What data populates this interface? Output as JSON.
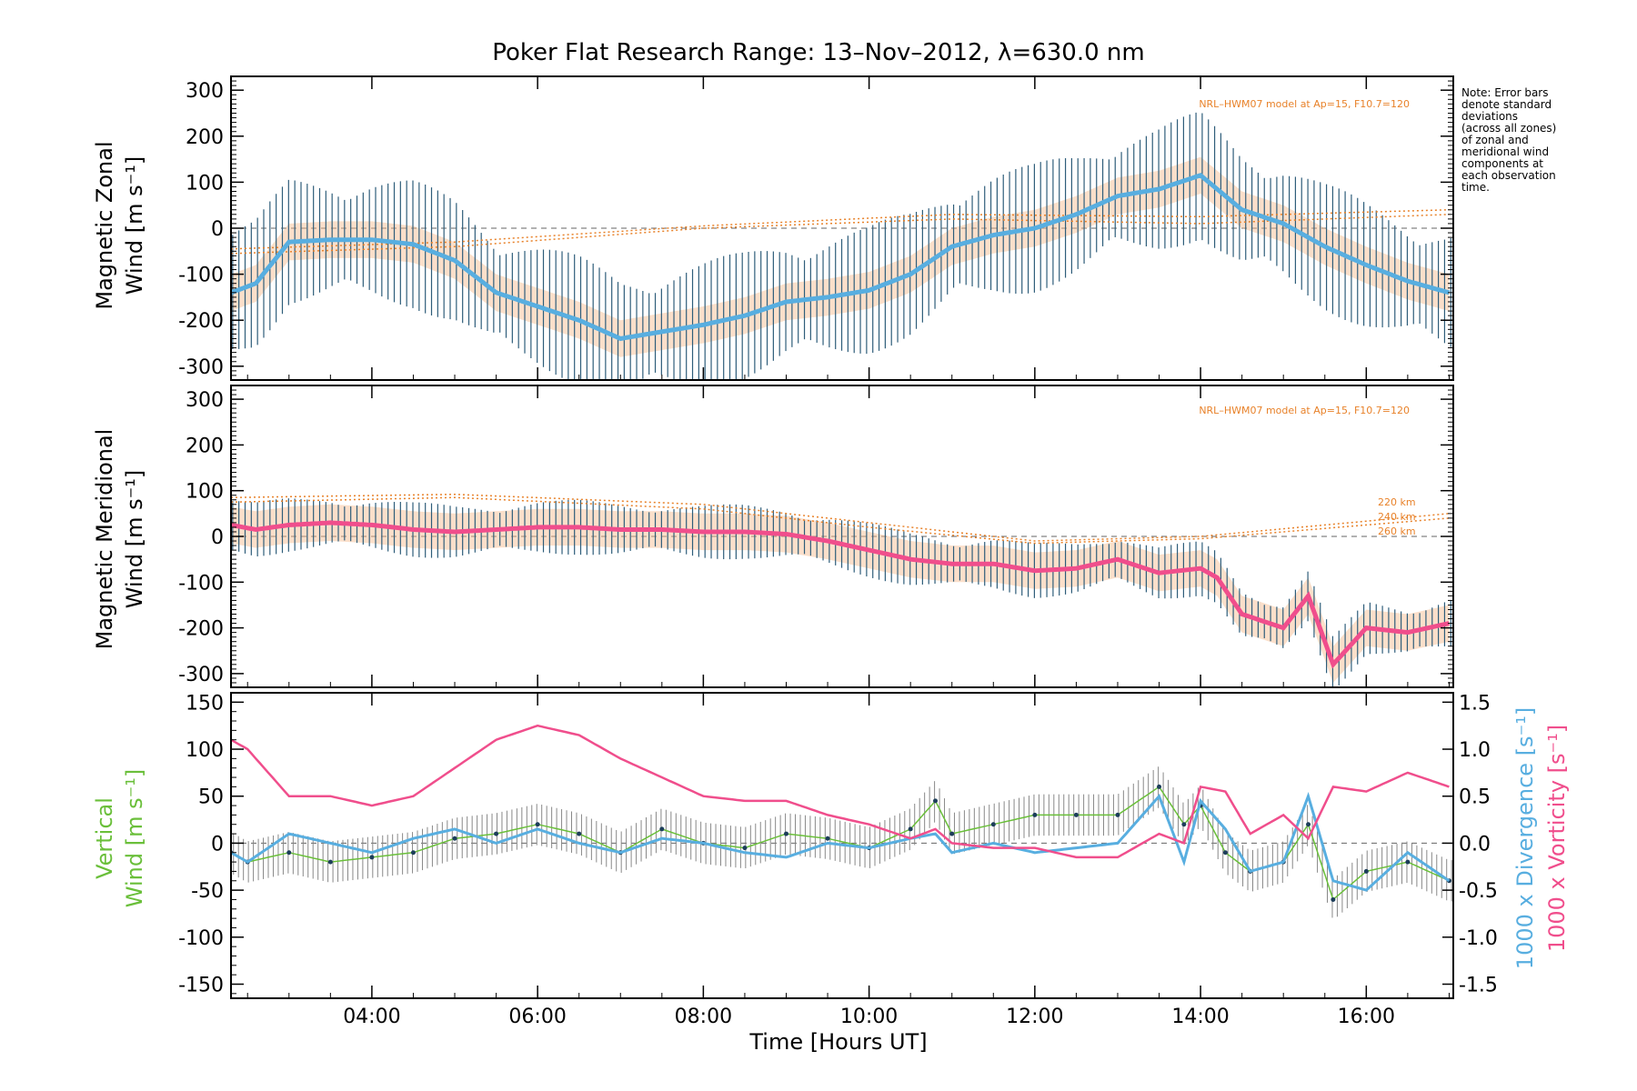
{
  "title": "Poker Flat Research Range: 13–Nov–2012, λ=630.0 nm",
  "note": [
    "Note: Error bars",
    "denote standard",
    "deviations",
    "(across all zones)",
    "of zonal and",
    "meridional wind",
    "components at",
    "each observation",
    "time."
  ],
  "colors": {
    "zonal_line": "#58aee0",
    "meridional_line": "#f04e8c",
    "vertical": "#6abf3a",
    "divergence": "#58aee0",
    "vorticity": "#f04e8c",
    "errbar": "#2e5d7a",
    "model": "#e8822a",
    "zone_orange": "#f7b88a",
    "zone_yellow": "#fde2a6",
    "zone_purple": "#a99ad6"
  },
  "chart_data": [
    {
      "type": "line",
      "panel": "zonal",
      "ylabel": [
        "Magnetic Zonal",
        "Wind [m s⁻¹]"
      ],
      "ylim": [
        -330,
        330
      ],
      "yticks": [
        300,
        200,
        100,
        0,
        -100,
        -200,
        -300
      ],
      "model_label": "NRL–HWM07 model at Ap=15, F10.7=120",
      "x_hours": [
        2.3,
        2.6,
        3.0,
        3.5,
        4.0,
        4.5,
        5.0,
        5.5,
        6.0,
        6.5,
        7.0,
        7.5,
        8.0,
        8.5,
        9.0,
        9.5,
        10.0,
        10.5,
        11.0,
        11.5,
        12.0,
        12.5,
        13.0,
        13.5,
        14.0,
        14.5,
        15.0,
        15.5,
        16.0,
        16.5,
        17.0
      ],
      "series": [
        {
          "values": [
            -140,
            -120,
            -30,
            -25,
            -25,
            -35,
            -70,
            -140,
            -170,
            -200,
            -240,
            -225,
            -210,
            -190,
            -160,
            -150,
            -135,
            -100,
            -40,
            -15,
            0,
            30,
            70,
            85,
            115,
            40,
            10,
            -40,
            -80,
            -115,
            -140
          ]
        }
      ],
      "errbar_halfwidth": 140,
      "model_curves": [
        {
          "x": [
            2.3,
            5.0,
            8.0,
            11.0,
            14.0,
            17.0
          ],
          "y": [
            -55,
            -40,
            0,
            20,
            10,
            30
          ]
        },
        {
          "x": [
            2.3,
            5.0,
            8.0,
            11.0,
            14.0,
            17.0
          ],
          "y": [
            -45,
            -30,
            5,
            30,
            25,
            40
          ]
        }
      ]
    },
    {
      "type": "line",
      "panel": "meridional",
      "ylabel": [
        "Magnetic Meridional",
        "Wind [m s⁻¹]"
      ],
      "ylim": [
        -330,
        330
      ],
      "yticks": [
        300,
        200,
        100,
        0,
        -100,
        -200,
        -300
      ],
      "model_label": "NRL–HWM07 model at Ap=15, F10.7=120",
      "model_curve_labels": [
        "220 km",
        "240 km",
        "260 km"
      ],
      "x_hours": [
        2.3,
        2.6,
        3.0,
        3.5,
        4.0,
        4.5,
        5.0,
        5.5,
        6.0,
        6.5,
        7.0,
        7.5,
        8.0,
        8.5,
        9.0,
        9.5,
        10.0,
        10.5,
        11.0,
        11.5,
        12.0,
        12.5,
        13.0,
        13.5,
        14.0,
        14.2,
        14.5,
        15.0,
        15.3,
        15.6,
        16.0,
        16.5,
        17.0
      ],
      "series": [
        {
          "values": [
            25,
            15,
            25,
            30,
            25,
            15,
            10,
            15,
            20,
            20,
            15,
            15,
            10,
            10,
            5,
            -10,
            -30,
            -50,
            -60,
            -60,
            -75,
            -70,
            -50,
            -80,
            -70,
            -90,
            -170,
            -200,
            -130,
            -280,
            -200,
            -210,
            -190
          ]
        }
      ],
      "errbar_halfwidth": 60,
      "model_curves": [
        {
          "x": [
            2.3,
            5.0,
            8.0,
            10.0,
            12.0,
            14.0,
            17.0
          ],
          "y": [
            85,
            92,
            70,
            30,
            -10,
            0,
            50
          ]
        },
        {
          "x": [
            2.3,
            5.0,
            8.0,
            10.0,
            12.0,
            14.0,
            17.0
          ],
          "y": [
            75,
            85,
            60,
            20,
            -15,
            -5,
            40
          ]
        }
      ]
    },
    {
      "type": "line",
      "panel": "vertical",
      "ylabel": [
        "Vertical",
        "Wind [m s⁻¹]"
      ],
      "ylim": [
        -165,
        160
      ],
      "yticks": [
        150,
        100,
        50,
        0,
        -50,
        -100,
        -150
      ],
      "ylabel_right": [
        "1000 x Divergence [s⁻¹]",
        "1000 x Vorticity [s⁻¹]"
      ],
      "ylim_right": [
        -1.65,
        1.6
      ],
      "yticks_right": [
        "1.5",
        "1.0",
        "0.5",
        "0.0",
        "-0.5",
        "-1.0",
        "-1.5"
      ],
      "x_hours": [
        2.3,
        2.5,
        3.0,
        3.5,
        4.0,
        4.5,
        5.0,
        5.5,
        6.0,
        6.5,
        7.0,
        7.5,
        8.0,
        8.5,
        9.0,
        9.5,
        10.0,
        10.5,
        10.8,
        11.0,
        11.5,
        12.0,
        12.5,
        13.0,
        13.5,
        13.8,
        14.0,
        14.3,
        14.6,
        15.0,
        15.3,
        15.6,
        16.0,
        16.5,
        17.0
      ],
      "series": [
        {
          "name": "Vertical",
          "values": [
            -10,
            -20,
            -10,
            -20,
            -15,
            -10,
            5,
            10,
            20,
            10,
            -10,
            15,
            0,
            -5,
            10,
            5,
            -5,
            15,
            45,
            10,
            20,
            30,
            30,
            30,
            60,
            20,
            40,
            -10,
            -30,
            -20,
            20,
            -60,
            -30,
            -20,
            -40
          ]
        },
        {
          "name": "Divergence",
          "values": [
            -0.1,
            -0.2,
            0.1,
            0.0,
            -0.1,
            0.05,
            0.15,
            0.0,
            0.15,
            0.0,
            -0.1,
            0.05,
            0.0,
            -0.1,
            -0.15,
            0.0,
            -0.05,
            0.05,
            0.1,
            -0.1,
            0.0,
            -0.1,
            -0.05,
            0.0,
            0.5,
            -0.2,
            0.45,
            0.15,
            -0.3,
            -0.2,
            0.5,
            -0.4,
            -0.5,
            -0.1,
            -0.4
          ]
        },
        {
          "name": "Vorticity",
          "values": [
            1.1,
            1.0,
            0.5,
            0.5,
            0.4,
            0.5,
            0.8,
            1.1,
            1.25,
            1.15,
            0.9,
            0.7,
            0.5,
            0.45,
            0.45,
            0.3,
            0.2,
            0.05,
            0.15,
            0.0,
            -0.05,
            -0.05,
            -0.15,
            -0.15,
            0.1,
            0.0,
            0.6,
            0.55,
            0.1,
            0.3,
            0.05,
            0.6,
            0.55,
            0.75,
            0.6
          ]
        }
      ]
    }
  ],
  "xaxis": {
    "label": "Time [Hours UT]",
    "xlim": [
      2.3,
      17.05
    ],
    "ticks": [
      4,
      6,
      8,
      10,
      12,
      14,
      16
    ],
    "tick_labels": [
      "04:00",
      "06:00",
      "08:00",
      "10:00",
      "12:00",
      "14:00",
      "16:00"
    ]
  }
}
